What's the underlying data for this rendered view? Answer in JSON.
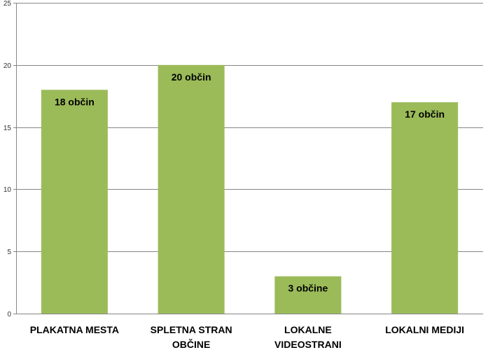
{
  "chart_data": {
    "type": "bar",
    "categories": [
      [
        "PLAKATNA MESTA"
      ],
      [
        "SPLETNA STRAN",
        "OBČINE"
      ],
      [
        "LOKALNE",
        "VIDEOSTRANI"
      ],
      [
        "LOKALNI MEDIJI"
      ]
    ],
    "values": [
      18,
      20,
      3,
      17
    ],
    "data_labels": [
      "18 občin",
      "20 občin",
      "3 občine",
      "17 občin"
    ],
    "y_ticks": [
      "0",
      "5",
      "10",
      "15",
      "20",
      "25"
    ],
    "ylim": [
      0,
      25
    ],
    "grid": true,
    "legend": "none",
    "colors": {
      "bar": "#9BBB59",
      "grid": "#868686",
      "axis": "#868686"
    }
  }
}
